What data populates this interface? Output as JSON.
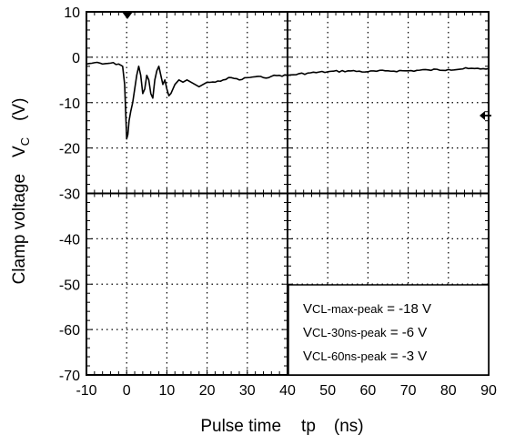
{
  "chart_data": {
    "type": "line",
    "xlabel": {
      "title": "Pulse time",
      "symbol": "tp",
      "unit": "(ns)"
    },
    "ylabel": {
      "title": "Clamp voltage",
      "symbol": "V",
      "subscript": "C",
      "unit": "(V)"
    },
    "xlim": [
      -10,
      90
    ],
    "ylim": [
      -70,
      10
    ],
    "xticks": [
      "-10",
      "0",
      "10",
      "20",
      "30",
      "40",
      "50",
      "60",
      "70",
      "80",
      "90"
    ],
    "yticks": [
      "10",
      "0",
      "-10",
      "-20",
      "-30",
      "-40",
      "-50",
      "-60",
      "-70"
    ],
    "grid": true,
    "series": [
      {
        "x": [
          -10,
          -8,
          -6,
          -4,
          -2,
          -1,
          -0.5,
          0,
          0.3,
          0.6,
          1,
          1.5,
          2,
          2.5,
          3,
          3.5,
          4,
          4.5,
          5,
          5.5,
          6,
          6.5,
          7,
          7.5,
          8,
          8.5,
          9,
          9.5,
          10,
          10.5,
          11,
          12,
          13,
          14,
          15,
          16,
          17,
          18,
          19,
          20,
          22,
          24,
          26,
          28,
          30,
          32,
          34,
          36,
          38,
          40,
          45,
          50,
          55,
          60,
          65,
          70,
          75,
          80,
          85,
          88,
          90
        ],
        "values": [
          -1.5,
          -1.2,
          -1.5,
          -1.3,
          -1.5,
          -2,
          -6,
          -18,
          -17,
          -14,
          -12,
          -10,
          -7,
          -4,
          -2,
          -4,
          -8,
          -7,
          -4,
          -5,
          -8,
          -9,
          -5,
          -3,
          -2,
          -4,
          -6,
          -5,
          -7,
          -8.5,
          -8,
          -6,
          -5,
          -5.5,
          -5,
          -5.5,
          -6,
          -6.5,
          -6,
          -5.5,
          -5.5,
          -5,
          -4.5,
          -5,
          -4.5,
          -4.3,
          -4.5,
          -4.2,
          -4,
          -4,
          -3.5,
          -3.2,
          -3,
          -3.2,
          -3,
          -3,
          -2.8,
          -2.7,
          -2.5,
          -2.6,
          -2.5
        ]
      }
    ],
    "annotation": {
      "lines": [
        {
          "v": "V",
          "sub": "CL-max-peak",
          "rest": " = -18 V"
        },
        {
          "v": "V",
          "sub": "CL-30ns-peak",
          "rest": " = -6 V"
        },
        {
          "v": "V",
          "sub": "CL-60ns-peak",
          "rest": " = -3 V"
        }
      ]
    }
  }
}
